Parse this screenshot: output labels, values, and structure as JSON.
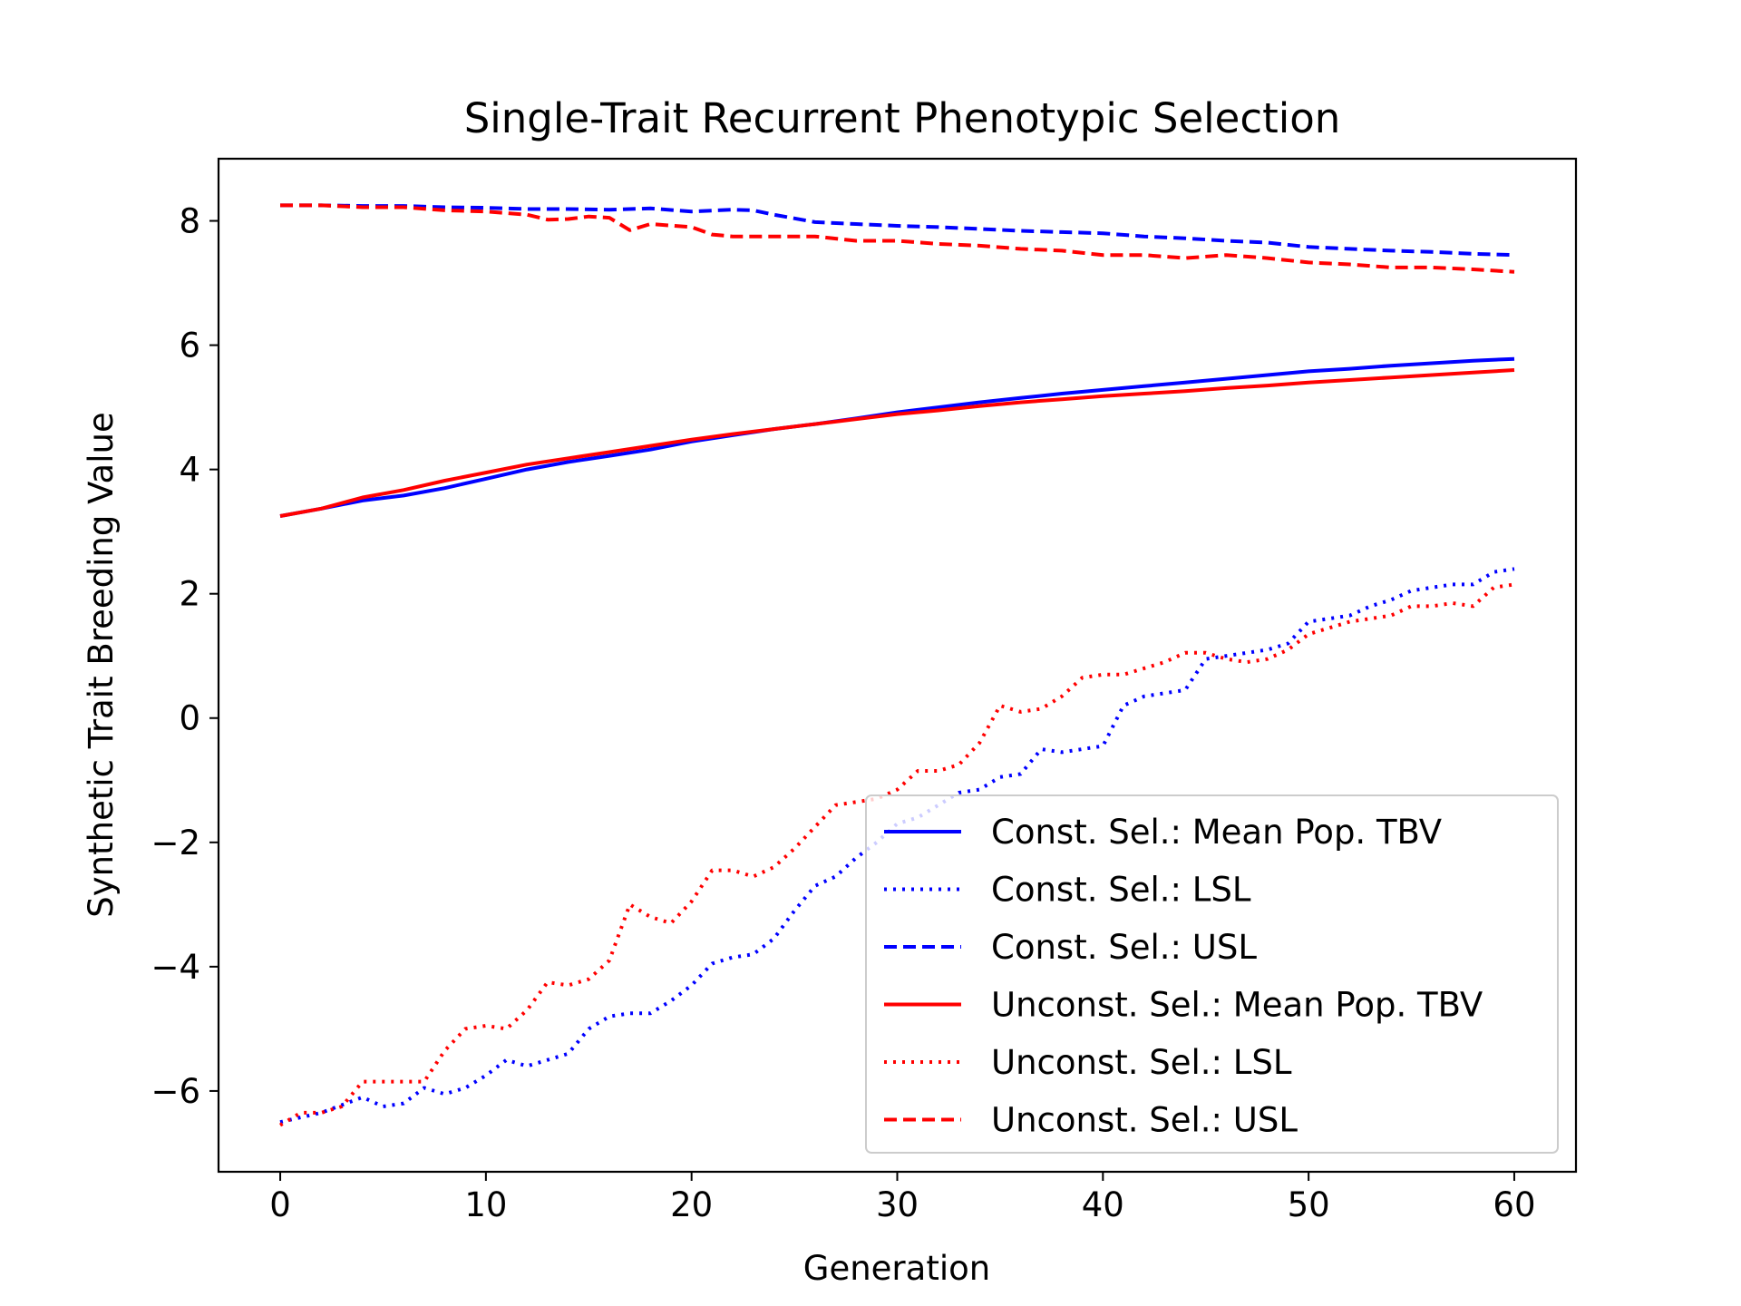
{
  "chart_data": {
    "type": "line",
    "title": "Single-Trait Recurrent Phenotypic Selection",
    "xlabel": "Generation",
    "ylabel": "Synthetic Trait Breeding Value",
    "xlim": [
      -3,
      63
    ],
    "ylim": [
      -7.3,
      9.0
    ],
    "xticks": [
      0,
      10,
      20,
      30,
      40,
      50,
      60
    ],
    "yticks": [
      -6,
      -4,
      -2,
      0,
      2,
      4,
      6,
      8
    ],
    "grid": false,
    "legend_position": "lower-right",
    "series": [
      {
        "name": "Const. Sel.: Mean Pop. TBV",
        "color": "#0000ff",
        "style": "solid",
        "x": [
          0,
          2,
          4,
          6,
          8,
          10,
          12,
          14,
          16,
          18,
          20,
          22,
          24,
          26,
          28,
          30,
          32,
          34,
          36,
          38,
          40,
          42,
          44,
          46,
          48,
          50,
          52,
          54,
          56,
          58,
          60
        ],
        "y": [
          3.25,
          3.37,
          3.5,
          3.58,
          3.7,
          3.85,
          4.0,
          4.12,
          4.22,
          4.32,
          4.45,
          4.55,
          4.65,
          4.73,
          4.82,
          4.92,
          5.0,
          5.08,
          5.15,
          5.22,
          5.28,
          5.34,
          5.4,
          5.46,
          5.52,
          5.58,
          5.62,
          5.67,
          5.71,
          5.75,
          5.78
        ]
      },
      {
        "name": "Const. Sel.: LSL",
        "color": "#0000ff",
        "style": "dotted",
        "x": [
          0,
          2,
          4,
          5,
          6,
          7,
          8,
          9,
          10,
          11,
          12,
          13,
          14,
          15,
          16,
          17,
          18,
          19,
          20,
          21,
          22,
          23,
          24,
          25,
          26,
          27,
          28,
          29,
          30,
          31,
          32,
          33,
          34,
          35,
          36,
          37,
          38,
          39,
          40,
          41,
          42,
          43,
          44,
          45,
          46,
          47,
          48,
          49,
          50,
          51,
          52,
          53,
          54,
          55,
          56,
          57,
          58,
          59,
          60
        ],
        "y": [
          -6.5,
          -6.35,
          -6.1,
          -6.25,
          -6.2,
          -5.95,
          -6.05,
          -5.95,
          -5.75,
          -5.5,
          -5.6,
          -5.5,
          -5.4,
          -5.0,
          -4.8,
          -4.75,
          -4.75,
          -4.55,
          -4.3,
          -3.95,
          -3.85,
          -3.8,
          -3.55,
          -3.1,
          -2.7,
          -2.55,
          -2.25,
          -2.0,
          -1.7,
          -1.6,
          -1.4,
          -1.2,
          -1.15,
          -0.95,
          -0.9,
          -0.5,
          -0.55,
          -0.5,
          -0.45,
          0.2,
          0.35,
          0.4,
          0.45,
          0.95,
          1.0,
          1.05,
          1.1,
          1.2,
          1.55,
          1.6,
          1.65,
          1.8,
          1.9,
          2.05,
          2.1,
          2.15,
          2.15,
          2.35,
          2.4
        ]
      },
      {
        "name": "Const. Sel.: USL",
        "color": "#0000ff",
        "style": "dashed",
        "x": [
          0,
          2,
          4,
          6,
          8,
          10,
          12,
          14,
          16,
          18,
          20,
          22,
          23,
          24,
          26,
          28,
          30,
          32,
          34,
          36,
          38,
          40,
          42,
          44,
          46,
          48,
          50,
          52,
          54,
          56,
          58,
          60
        ],
        "y": [
          8.25,
          8.25,
          8.24,
          8.24,
          8.22,
          8.21,
          8.19,
          8.19,
          8.18,
          8.2,
          8.15,
          8.18,
          8.17,
          8.1,
          7.98,
          7.95,
          7.92,
          7.9,
          7.87,
          7.84,
          7.82,
          7.8,
          7.75,
          7.72,
          7.68,
          7.65,
          7.58,
          7.55,
          7.52,
          7.5,
          7.47,
          7.45
        ]
      },
      {
        "name": "Unconst. Sel.: Mean Pop. TBV",
        "color": "#ff0000",
        "style": "solid",
        "x": [
          0,
          2,
          4,
          6,
          8,
          10,
          12,
          14,
          16,
          18,
          20,
          22,
          24,
          26,
          28,
          30,
          32,
          34,
          36,
          38,
          40,
          42,
          44,
          46,
          48,
          50,
          52,
          54,
          56,
          58,
          60
        ],
        "y": [
          3.25,
          3.37,
          3.55,
          3.67,
          3.82,
          3.95,
          4.08,
          4.18,
          4.28,
          4.38,
          4.48,
          4.57,
          4.65,
          4.73,
          4.81,
          4.89,
          4.95,
          5.02,
          5.08,
          5.13,
          5.18,
          5.22,
          5.26,
          5.31,
          5.35,
          5.4,
          5.44,
          5.48,
          5.52,
          5.56,
          5.6
        ]
      },
      {
        "name": "Unconst. Sel.: LSL",
        "color": "#ff0000",
        "style": "dotted",
        "x": [
          0,
          1,
          2,
          3,
          4,
          5,
          6,
          7,
          8,
          9,
          10,
          11,
          12,
          13,
          14,
          15,
          16,
          17,
          18,
          19,
          20,
          21,
          22,
          23,
          24,
          25,
          26,
          27,
          28,
          29,
          30,
          31,
          32,
          33,
          34,
          35,
          36,
          37,
          38,
          39,
          40,
          41,
          42,
          43,
          44,
          45,
          46,
          47,
          48,
          49,
          50,
          51,
          52,
          53,
          54,
          55,
          56,
          57,
          58,
          59,
          60
        ],
        "y": [
          -6.55,
          -6.35,
          -6.35,
          -6.25,
          -5.85,
          -5.85,
          -5.85,
          -5.85,
          -5.35,
          -5.0,
          -4.95,
          -5.0,
          -4.7,
          -4.25,
          -4.3,
          -4.2,
          -3.9,
          -3.0,
          -3.2,
          -3.3,
          -2.95,
          -2.45,
          -2.45,
          -2.55,
          -2.4,
          -2.1,
          -1.75,
          -1.4,
          -1.35,
          -1.3,
          -1.15,
          -0.85,
          -0.85,
          -0.75,
          -0.4,
          0.2,
          0.1,
          0.15,
          0.35,
          0.65,
          0.7,
          0.7,
          0.8,
          0.9,
          1.05,
          1.05,
          0.95,
          0.9,
          0.95,
          1.1,
          1.35,
          1.45,
          1.55,
          1.6,
          1.65,
          1.8,
          1.8,
          1.85,
          1.8,
          2.1,
          2.15
        ]
      },
      {
        "name": "Unconst. Sel.: USL",
        "color": "#ff0000",
        "style": "dashed",
        "x": [
          0,
          2,
          4,
          6,
          8,
          10,
          12,
          13,
          14,
          15,
          16,
          17,
          18,
          20,
          21,
          22,
          24,
          26,
          28,
          30,
          32,
          34,
          36,
          38,
          40,
          42,
          44,
          46,
          48,
          50,
          52,
          54,
          56,
          58,
          60
        ],
        "y": [
          8.25,
          8.25,
          8.22,
          8.22,
          8.17,
          8.15,
          8.1,
          8.02,
          8.03,
          8.07,
          8.05,
          7.85,
          7.95,
          7.9,
          7.78,
          7.75,
          7.75,
          7.75,
          7.68,
          7.68,
          7.63,
          7.6,
          7.55,
          7.52,
          7.45,
          7.45,
          7.4,
          7.45,
          7.4,
          7.33,
          7.3,
          7.25,
          7.25,
          7.22,
          7.18
        ]
      }
    ]
  }
}
